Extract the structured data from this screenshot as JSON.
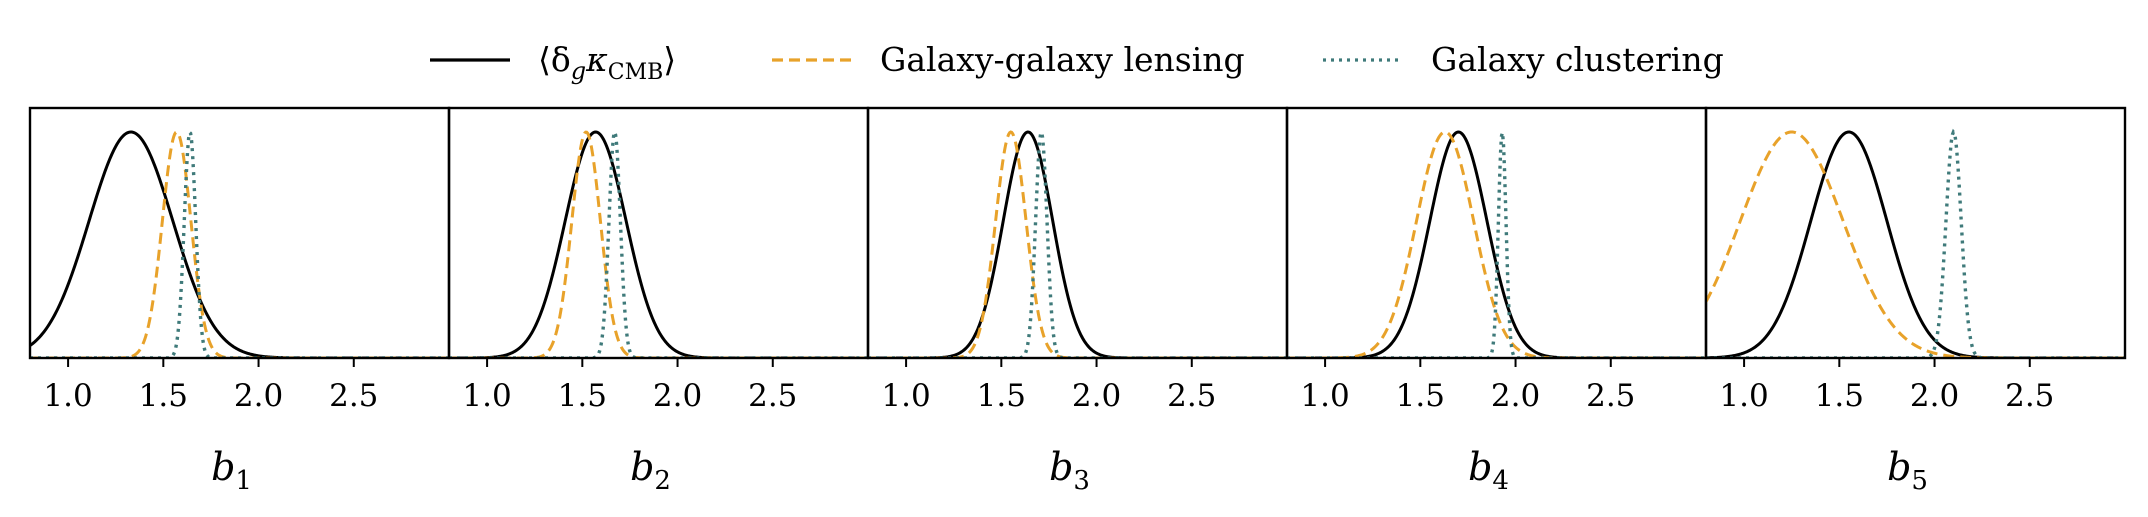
{
  "legend": {
    "position": "top-center",
    "items": [
      {
        "label": "⟨δgκCMB⟩",
        "display_main": "⟨δ",
        "display_sub1": "g",
        "display_mid": "κ",
        "display_sub2": "CMB",
        "display_end": "⟩",
        "color": "#000000",
        "dash": "solid"
      },
      {
        "label": "Galaxy-galaxy lensing",
        "color": "#E8A22A",
        "dash": "dashed"
      },
      {
        "label": "Galaxy clustering",
        "color": "#3F7A7A",
        "dash": "dotted"
      }
    ]
  },
  "chart_data": [
    {
      "type": "line",
      "xlabel": "b1",
      "xlabel_main": "b",
      "xlabel_sub": "1",
      "xlim": [
        0.8,
        3.0
      ],
      "xticks": [
        "1.0",
        "1.5",
        "2.0",
        "2.5"
      ],
      "series": [
        {
          "name": "⟨δgκCMB⟩",
          "mean": 1.33,
          "sigma": 0.22
        },
        {
          "name": "Galaxy-galaxy lensing",
          "mean": 1.57,
          "sigma": 0.075
        },
        {
          "name": "Galaxy clustering",
          "mean": 1.64,
          "sigma": 0.03
        }
      ]
    },
    {
      "type": "line",
      "xlabel": "b2",
      "xlabel_main": "b",
      "xlabel_sub": "2",
      "xlim": [
        0.8,
        3.0
      ],
      "xticks": [
        "1.0",
        "1.5",
        "2.0",
        "2.5"
      ],
      "series": [
        {
          "name": "⟨δgκCMB⟩",
          "mean": 1.57,
          "sigma": 0.16
        },
        {
          "name": "Galaxy-galaxy lensing",
          "mean": 1.52,
          "sigma": 0.075
        },
        {
          "name": "Galaxy clustering",
          "mean": 1.67,
          "sigma": 0.03
        }
      ]
    },
    {
      "type": "line",
      "xlabel": "b3",
      "xlabel_main": "b",
      "xlabel_sub": "3",
      "xlim": [
        0.8,
        3.0
      ],
      "xticks": [
        "1.0",
        "1.5",
        "2.0",
        "2.5"
      ],
      "series": [
        {
          "name": "⟨δgκCMB⟩",
          "mean": 1.64,
          "sigma": 0.13
        },
        {
          "name": "Galaxy-galaxy lensing",
          "mean": 1.55,
          "sigma": 0.08
        },
        {
          "name": "Galaxy clustering",
          "mean": 1.71,
          "sigma": 0.03
        }
      ]
    },
    {
      "type": "line",
      "xlabel": "b4",
      "xlabel_main": "b",
      "xlabel_sub": "4",
      "xlim": [
        0.8,
        3.0
      ],
      "xticks": [
        "1.0",
        "1.5",
        "2.0",
        "2.5"
      ],
      "series": [
        {
          "name": "⟨δgκCMB⟩",
          "mean": 1.7,
          "sigma": 0.15
        },
        {
          "name": "Galaxy-galaxy lensing",
          "mean": 1.63,
          "sigma": 0.15
        },
        {
          "name": "Galaxy clustering",
          "mean": 1.93,
          "sigma": 0.02
        }
      ]
    },
    {
      "type": "line",
      "xlabel": "b5",
      "xlabel_main": "b",
      "xlabel_sub": "5",
      "xlim": [
        0.8,
        3.0
      ],
      "xticks": [
        "1.0",
        "1.5",
        "2.0",
        "2.5"
      ],
      "series": [
        {
          "name": "⟨δgκCMB⟩",
          "mean": 1.55,
          "sigma": 0.2
        },
        {
          "name": "Galaxy-galaxy lensing",
          "mean": 1.25,
          "sigma": 0.27
        },
        {
          "name": "Galaxy clustering",
          "mean": 2.1,
          "sigma": 0.04
        }
      ]
    }
  ]
}
